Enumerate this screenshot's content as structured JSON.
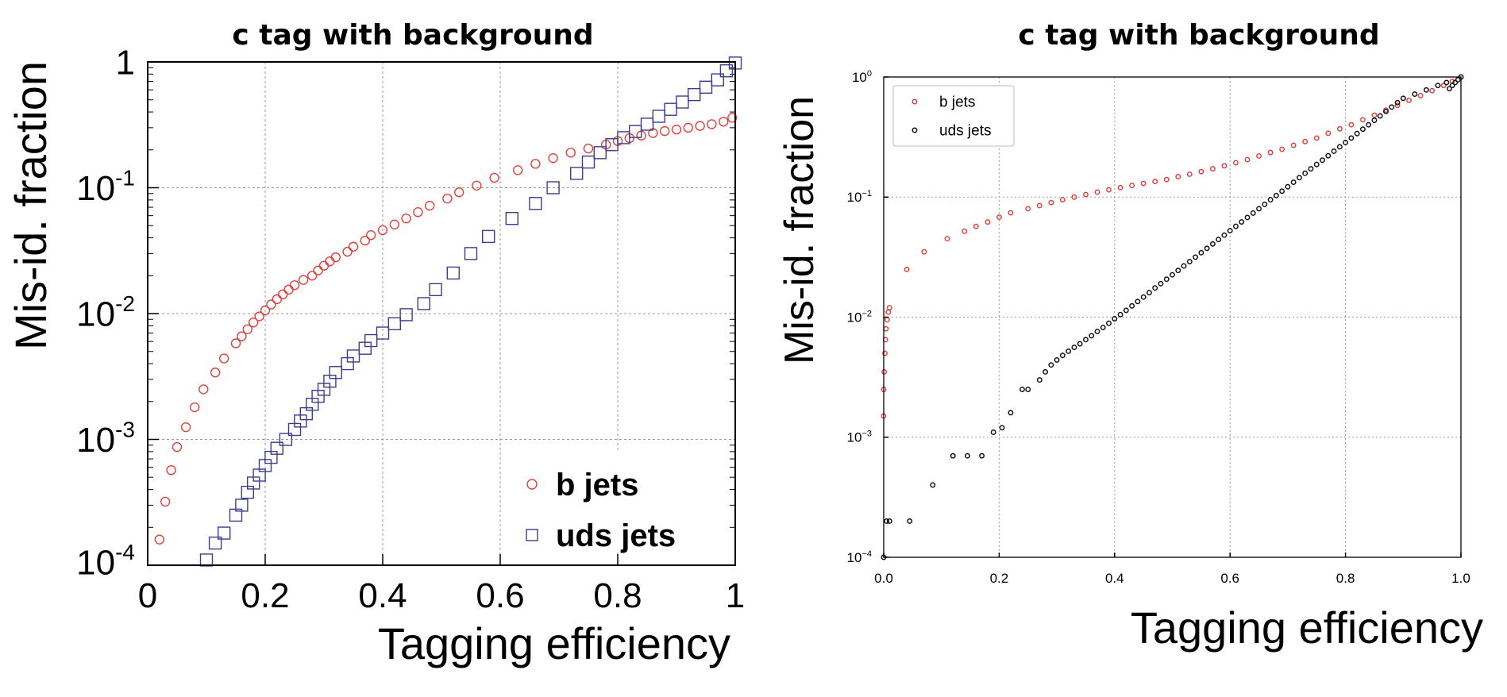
{
  "chart_data": [
    {
      "type": "scatter",
      "title": "c tag with background",
      "xlabel": "Tagging efficiency",
      "ylabel": "Mis-id. fraction",
      "xlim": [
        0,
        1
      ],
      "ylim": [
        0.0001,
        1
      ],
      "yscale": "log",
      "grid": true,
      "legend_position": "bottom-right",
      "x_ticks": [
        "0",
        "0.2",
        "0.4",
        "0.6",
        "0.8",
        "1"
      ],
      "y_ticks": [
        {
          "base": "10",
          "exp": "-4"
        },
        {
          "base": "10",
          "exp": "-3"
        },
        {
          "base": "10",
          "exp": "-2"
        },
        {
          "base": "10",
          "exp": "-1"
        },
        {
          "base": "1",
          "exp": ""
        }
      ],
      "series": [
        {
          "name": "b jets",
          "marker": "circle",
          "color": "#e0413c",
          "points": [
            [
              0.02,
              0.00016
            ],
            [
              0.03,
              0.00032
            ],
            [
              0.04,
              0.00057
            ],
            [
              0.05,
              0.00087
            ],
            [
              0.065,
              0.00125
            ],
            [
              0.08,
              0.0018
            ],
            [
              0.095,
              0.0025
            ],
            [
              0.115,
              0.0034
            ],
            [
              0.13,
              0.0044
            ],
            [
              0.15,
              0.0058
            ],
            [
              0.16,
              0.0066
            ],
            [
              0.17,
              0.0075
            ],
            [
              0.18,
              0.0085
            ],
            [
              0.19,
              0.0095
            ],
            [
              0.2,
              0.0106
            ],
            [
              0.21,
              0.0118
            ],
            [
              0.22,
              0.013
            ],
            [
              0.23,
              0.0142
            ],
            [
              0.24,
              0.0155
            ],
            [
              0.25,
              0.0168
            ],
            [
              0.265,
              0.0185
            ],
            [
              0.28,
              0.02
            ],
            [
              0.29,
              0.022
            ],
            [
              0.3,
              0.024
            ],
            [
              0.31,
              0.026
            ],
            [
              0.32,
              0.028
            ],
            [
              0.34,
              0.031
            ],
            [
              0.35,
              0.034
            ],
            [
              0.37,
              0.038
            ],
            [
              0.38,
              0.042
            ],
            [
              0.4,
              0.046
            ],
            [
              0.42,
              0.051
            ],
            [
              0.44,
              0.057
            ],
            [
              0.46,
              0.064
            ],
            [
              0.48,
              0.072
            ],
            [
              0.51,
              0.082
            ],
            [
              0.53,
              0.092
            ],
            [
              0.56,
              0.104
            ],
            [
              0.59,
              0.12
            ],
            [
              0.63,
              0.138
            ],
            [
              0.66,
              0.155
            ],
            [
              0.69,
              0.172
            ],
            [
              0.72,
              0.19
            ],
            [
              0.75,
              0.205
            ],
            [
              0.78,
              0.22
            ],
            [
              0.8,
              0.235
            ],
            [
              0.82,
              0.248
            ],
            [
              0.84,
              0.26
            ],
            [
              0.86,
              0.272
            ],
            [
              0.88,
              0.282
            ],
            [
              0.9,
              0.29
            ],
            [
              0.92,
              0.3
            ],
            [
              0.94,
              0.31
            ],
            [
              0.96,
              0.32
            ],
            [
              0.98,
              0.335
            ],
            [
              0.995,
              0.36
            ]
          ]
        },
        {
          "name": "uds jets",
          "marker": "square",
          "color": "#3b3d8c",
          "points": [
            [
              0.1,
              0.00011
            ],
            [
              0.115,
              0.00015
            ],
            [
              0.13,
              0.00018
            ],
            [
              0.15,
              0.00025
            ],
            [
              0.16,
              0.0003
            ],
            [
              0.17,
              0.00038
            ],
            [
              0.18,
              0.00045
            ],
            [
              0.19,
              0.00052
            ],
            [
              0.2,
              0.00062
            ],
            [
              0.21,
              0.00072
            ],
            [
              0.22,
              0.00085
            ],
            [
              0.235,
              0.001
            ],
            [
              0.25,
              0.0012
            ],
            [
              0.26,
              0.0014
            ],
            [
              0.27,
              0.0016
            ],
            [
              0.28,
              0.0019
            ],
            [
              0.29,
              0.0022
            ],
            [
              0.3,
              0.0025
            ],
            [
              0.31,
              0.0029
            ],
            [
              0.32,
              0.0034
            ],
            [
              0.34,
              0.004
            ],
            [
              0.35,
              0.0046
            ],
            [
              0.37,
              0.0053
            ],
            [
              0.38,
              0.0061
            ],
            [
              0.4,
              0.007
            ],
            [
              0.42,
              0.0083
            ],
            [
              0.44,
              0.0098
            ],
            [
              0.47,
              0.012
            ],
            [
              0.49,
              0.0155
            ],
            [
              0.52,
              0.021
            ],
            [
              0.55,
              0.03
            ],
            [
              0.58,
              0.041
            ],
            [
              0.62,
              0.057
            ],
            [
              0.66,
              0.075
            ],
            [
              0.69,
              0.1
            ],
            [
              0.73,
              0.13
            ],
            [
              0.75,
              0.16
            ],
            [
              0.77,
              0.19
            ],
            [
              0.79,
              0.22
            ],
            [
              0.81,
              0.25
            ],
            [
              0.83,
              0.28
            ],
            [
              0.85,
              0.32
            ],
            [
              0.87,
              0.37
            ],
            [
              0.89,
              0.42
            ],
            [
              0.91,
              0.48
            ],
            [
              0.93,
              0.55
            ],
            [
              0.95,
              0.63
            ],
            [
              0.97,
              0.72
            ],
            [
              0.985,
              0.85
            ],
            [
              1.0,
              0.98
            ]
          ]
        }
      ]
    },
    {
      "type": "scatter",
      "title": "c tag with background",
      "xlabel": "Tagging efficiency",
      "ylabel": "Mis-id. fraction",
      "xlim": [
        0,
        1
      ],
      "ylim": [
        0.0001,
        1
      ],
      "yscale": "log",
      "grid": true,
      "legend_position": "top-left",
      "x_ticks": [
        "0.0",
        "0.2",
        "0.4",
        "0.6",
        "0.8",
        "1.0"
      ],
      "y_ticks": [
        {
          "base": "10",
          "exp": "−4"
        },
        {
          "base": "10",
          "exp": "−3"
        },
        {
          "base": "10",
          "exp": "−2"
        },
        {
          "base": "10",
          "exp": "−1"
        },
        {
          "base": "10",
          "exp": "0"
        }
      ],
      "series": [
        {
          "name": "b jets",
          "marker": "circle",
          "color": "#e0413c",
          "points": [
            [
              0.0,
              0.0015
            ],
            [
              0.0,
              0.0025
            ],
            [
              0.001,
              0.0035
            ],
            [
              0.002,
              0.005
            ],
            [
              0.003,
              0.0065
            ],
            [
              0.004,
              0.008
            ],
            [
              0.006,
              0.0095
            ],
            [
              0.008,
              0.011
            ],
            [
              0.01,
              0.012
            ],
            [
              0.04,
              0.025
            ],
            [
              0.07,
              0.035
            ],
            [
              0.11,
              0.045
            ],
            [
              0.14,
              0.052
            ],
            [
              0.16,
              0.057
            ],
            [
              0.18,
              0.062
            ],
            [
              0.2,
              0.068
            ],
            [
              0.22,
              0.074
            ],
            [
              0.25,
              0.08
            ],
            [
              0.27,
              0.085
            ],
            [
              0.29,
              0.09
            ],
            [
              0.31,
              0.095
            ],
            [
              0.33,
              0.1
            ],
            [
              0.35,
              0.105
            ],
            [
              0.37,
              0.11
            ],
            [
              0.39,
              0.115
            ],
            [
              0.41,
              0.12
            ],
            [
              0.43,
              0.125
            ],
            [
              0.45,
              0.13
            ],
            [
              0.47,
              0.135
            ],
            [
              0.49,
              0.14
            ],
            [
              0.51,
              0.148
            ],
            [
              0.53,
              0.155
            ],
            [
              0.55,
              0.163
            ],
            [
              0.57,
              0.172
            ],
            [
              0.59,
              0.182
            ],
            [
              0.61,
              0.193
            ],
            [
              0.63,
              0.205
            ],
            [
              0.65,
              0.22
            ],
            [
              0.67,
              0.235
            ],
            [
              0.69,
              0.25
            ],
            [
              0.71,
              0.27
            ],
            [
              0.73,
              0.29
            ],
            [
              0.75,
              0.31
            ],
            [
              0.77,
              0.34
            ],
            [
              0.79,
              0.37
            ],
            [
              0.81,
              0.4
            ],
            [
              0.83,
              0.44
            ],
            [
              0.85,
              0.48
            ],
            [
              0.87,
              0.53
            ],
            [
              0.89,
              0.58
            ],
            [
              0.91,
              0.64
            ],
            [
              0.93,
              0.7
            ],
            [
              0.95,
              0.77
            ],
            [
              0.97,
              0.85
            ],
            [
              0.985,
              0.92
            ],
            [
              1.0,
              1.0
            ]
          ]
        },
        {
          "name": "uds jets",
          "marker": "circle",
          "color": "#111111",
          "points": [
            [
              0.0,
              0.0001
            ],
            [
              0.005,
              0.0002
            ],
            [
              0.01,
              0.0002
            ],
            [
              0.045,
              0.0002
            ],
            [
              0.085,
              0.0004
            ],
            [
              0.12,
              0.0007
            ],
            [
              0.145,
              0.0007
            ],
            [
              0.17,
              0.0007
            ],
            [
              0.19,
              0.0011
            ],
            [
              0.205,
              0.0012
            ],
            [
              0.22,
              0.0016
            ],
            [
              0.24,
              0.0025
            ],
            [
              0.25,
              0.0025
            ],
            [
              0.27,
              0.003
            ],
            [
              0.28,
              0.0035
            ],
            [
              0.29,
              0.004
            ],
            [
              0.3,
              0.0044
            ],
            [
              0.31,
              0.0048
            ],
            [
              0.32,
              0.0052
            ],
            [
              0.33,
              0.0056
            ],
            [
              0.34,
              0.006
            ],
            [
              0.35,
              0.0065
            ],
            [
              0.36,
              0.007
            ],
            [
              0.37,
              0.0076
            ],
            [
              0.38,
              0.0082
            ],
            [
              0.39,
              0.0089
            ],
            [
              0.4,
              0.0097
            ],
            [
              0.41,
              0.0105
            ],
            [
              0.42,
              0.0114
            ],
            [
              0.43,
              0.0124
            ],
            [
              0.44,
              0.0135
            ],
            [
              0.45,
              0.0147
            ],
            [
              0.46,
              0.016
            ],
            [
              0.47,
              0.0175
            ],
            [
              0.48,
              0.019
            ],
            [
              0.49,
              0.0207
            ],
            [
              0.5,
              0.0225
            ],
            [
              0.51,
              0.0245
            ],
            [
              0.52,
              0.0267
            ],
            [
              0.53,
              0.029
            ],
            [
              0.54,
              0.0316
            ],
            [
              0.55,
              0.0344
            ],
            [
              0.56,
              0.0374
            ],
            [
              0.57,
              0.0407
            ],
            [
              0.58,
              0.0443
            ],
            [
              0.59,
              0.0482
            ],
            [
              0.6,
              0.0525
            ],
            [
              0.61,
              0.0571
            ],
            [
              0.62,
              0.0621
            ],
            [
              0.63,
              0.0676
            ],
            [
              0.64,
              0.0736
            ],
            [
              0.65,
              0.08
            ],
            [
              0.66,
              0.087
            ],
            [
              0.67,
              0.095
            ],
            [
              0.68,
              0.103
            ],
            [
              0.69,
              0.112
            ],
            [
              0.7,
              0.122
            ],
            [
              0.71,
              0.133
            ],
            [
              0.72,
              0.145
            ],
            [
              0.73,
              0.158
            ],
            [
              0.74,
              0.172
            ],
            [
              0.75,
              0.187
            ],
            [
              0.76,
              0.203
            ],
            [
              0.77,
              0.221
            ],
            [
              0.78,
              0.241
            ],
            [
              0.79,
              0.262
            ],
            [
              0.8,
              0.285
            ],
            [
              0.81,
              0.31
            ],
            [
              0.82,
              0.338
            ],
            [
              0.83,
              0.368
            ],
            [
              0.84,
              0.4
            ],
            [
              0.85,
              0.436
            ],
            [
              0.86,
              0.474
            ],
            [
              0.87,
              0.516
            ],
            [
              0.88,
              0.562
            ],
            [
              0.89,
              0.611
            ],
            [
              0.9,
              0.665
            ],
            [
              0.92,
              0.72
            ],
            [
              0.94,
              0.78
            ],
            [
              0.96,
              0.85
            ],
            [
              0.975,
              0.9
            ],
            [
              0.98,
              0.8
            ],
            [
              0.985,
              0.85
            ],
            [
              0.99,
              0.9
            ],
            [
              0.995,
              0.95
            ],
            [
              1.0,
              1.0
            ]
          ]
        }
      ]
    }
  ]
}
